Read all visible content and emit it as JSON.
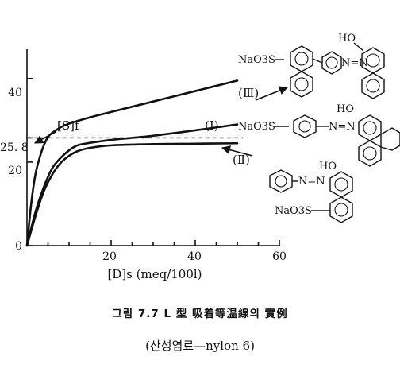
{
  "chart_data": {
    "type": "line",
    "xlabel": "[D]s (meq/100l)",
    "xlim": [
      0,
      60
    ],
    "ylim": [
      0,
      47
    ],
    "xticks": [
      20,
      40,
      60
    ],
    "yticks": [
      0,
      20,
      40
    ],
    "x_tick_labels": [
      "20",
      "40",
      "60"
    ],
    "y_tick_labels": [
      "0",
      "20",
      "40"
    ],
    "reference_line": {
      "y": 25.8,
      "label": "[S]f",
      "value_label": "25. 8"
    },
    "series": [
      {
        "name": "(Ⅲ)",
        "x": [
          0,
          1,
          2,
          3,
          4,
          5,
          6,
          8,
          10,
          15,
          20,
          30,
          40,
          50
        ],
        "y": [
          0,
          10,
          17,
          21,
          24,
          26,
          27,
          28.3,
          29.2,
          30.7,
          32,
          34.5,
          37,
          39.5
        ]
      },
      {
        "name": "(Ⅰ)",
        "x": [
          0,
          2,
          4,
          6,
          8,
          10,
          12,
          15,
          20,
          25,
          30,
          40,
          50
        ],
        "y": [
          0,
          8,
          14,
          18.5,
          21,
          22.8,
          24,
          24.6,
          25.3,
          25.8,
          26.3,
          27.6,
          29
        ]
      },
      {
        "name": "(Ⅱ)",
        "x": [
          0,
          2,
          4,
          6,
          8,
          10,
          12,
          15,
          20,
          30,
          40,
          50
        ],
        "y": [
          0,
          7,
          13,
          17,
          19.8,
          21.5,
          22.6,
          23.4,
          24,
          24.3,
          24.4,
          24.5
        ]
      }
    ]
  },
  "labels": {
    "x_axis": "[D]s (meq/100l)",
    "ref_value": "25. 8",
    "sf_label": "[S]f",
    "series_III": "(Ⅲ)",
    "series_I": "(Ⅰ)",
    "series_II": "(Ⅱ)"
  },
  "molecules": {
    "naso3s": "NaO3S",
    "ho": "HO",
    "azo": "N=N"
  },
  "caption": {
    "title": "그림 7.7 L 型 吸着等温線의 實例",
    "subtitle": "(산성염료—nylon 6)"
  }
}
